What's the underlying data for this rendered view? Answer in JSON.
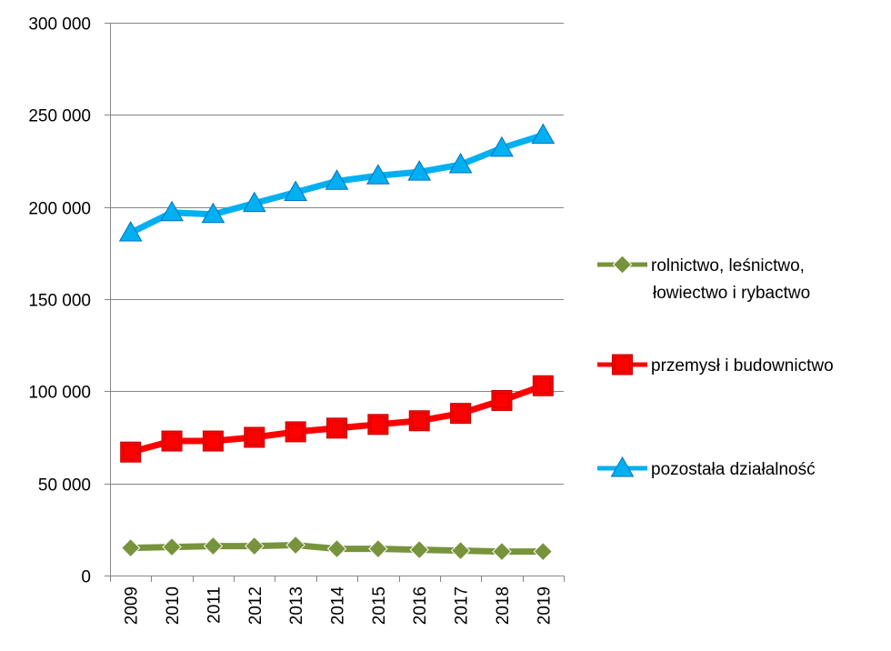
{
  "chart_data": {
    "type": "line",
    "title": "",
    "xlabel": "",
    "ylabel": "",
    "categories": [
      "2009",
      "2010",
      "2011",
      "2012",
      "2013",
      "2014",
      "2015",
      "2016",
      "2017",
      "2018",
      "2019"
    ],
    "ylim": [
      0,
      300000
    ],
    "yticks": [
      0,
      50000,
      100000,
      150000,
      200000,
      250000,
      300000
    ],
    "ytick_labels": [
      "0",
      "50 000",
      "100 000",
      "150 000",
      "200 000",
      "250 000",
      "300 000"
    ],
    "grid": true,
    "legend_position": "right",
    "series": [
      {
        "name": "rolnictwo, leśnictwo, łowiectwo i rybactwo",
        "legend_lines": [
          "rolnictwo, leśnictwo,",
          "łowiectwo i rybactwo"
        ],
        "color": "#77933C",
        "marker": "diamond",
        "values": [
          15000,
          15500,
          16000,
          16000,
          16500,
          14500,
          14500,
          14000,
          13500,
          13000,
          13000
        ]
      },
      {
        "name": "przemysł i budownictwo",
        "legend_lines": [
          "przemysł i budownictwo"
        ],
        "color": "#FF0000",
        "marker": "square",
        "values": [
          67000,
          73000,
          73000,
          75000,
          78000,
          80000,
          82000,
          84000,
          88000,
          95000,
          103000
        ]
      },
      {
        "name": "pozostała działalność",
        "legend_lines": [
          "pozostała działalność"
        ],
        "color": "#00B0F0",
        "marker": "triangle",
        "values": [
          186000,
          197000,
          196000,
          202000,
          208000,
          214000,
          217000,
          219000,
          223000,
          232000,
          239000
        ]
      }
    ]
  }
}
